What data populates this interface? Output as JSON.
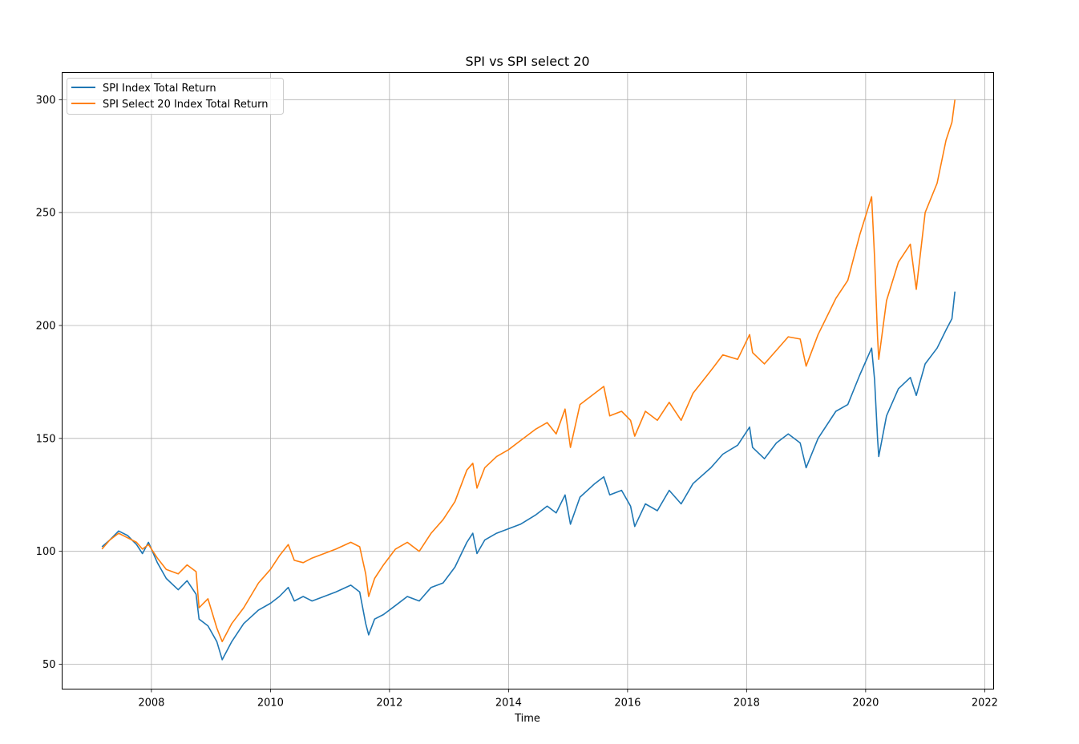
{
  "chart_data": {
    "type": "line",
    "title": "SPI vs SPI select 20",
    "xlabel": "Time",
    "ylabel": "",
    "xlim": [
      2006.5,
      2022.15
    ],
    "ylim": [
      39,
      312
    ],
    "x_ticks": [
      2008,
      2010,
      2012,
      2014,
      2016,
      2018,
      2020,
      2022
    ],
    "x_tick_labels": [
      "2008",
      "2010",
      "2012",
      "2014",
      "2016",
      "2018",
      "2020",
      "2022"
    ],
    "y_ticks": [
      50,
      100,
      150,
      200,
      250,
      300
    ],
    "y_tick_labels": [
      "50",
      "100",
      "150",
      "200",
      "250",
      "300"
    ],
    "grid": true,
    "legend_position": "upper-left",
    "series": [
      {
        "name": "SPI Index Total Return",
        "color": "#1f77b4",
        "points": [
          [
            2007.17,
            102
          ],
          [
            2007.3,
            105
          ],
          [
            2007.45,
            109
          ],
          [
            2007.6,
            107
          ],
          [
            2007.75,
            103
          ],
          [
            2007.85,
            99
          ],
          [
            2007.95,
            104
          ],
          [
            2008.1,
            95
          ],
          [
            2008.25,
            88
          ],
          [
            2008.45,
            83
          ],
          [
            2008.6,
            87
          ],
          [
            2008.75,
            81
          ],
          [
            2008.8,
            70
          ],
          [
            2008.95,
            67
          ],
          [
            2009.1,
            60
          ],
          [
            2009.19,
            52
          ],
          [
            2009.35,
            60
          ],
          [
            2009.55,
            68
          ],
          [
            2009.8,
            74
          ],
          [
            2010.0,
            77
          ],
          [
            2010.15,
            80
          ],
          [
            2010.3,
            84
          ],
          [
            2010.4,
            78
          ],
          [
            2010.55,
            80
          ],
          [
            2010.7,
            78
          ],
          [
            2010.9,
            80
          ],
          [
            2011.1,
            82
          ],
          [
            2011.35,
            85
          ],
          [
            2011.5,
            82
          ],
          [
            2011.6,
            68
          ],
          [
            2011.65,
            63
          ],
          [
            2011.75,
            70
          ],
          [
            2011.9,
            72
          ],
          [
            2012.1,
            76
          ],
          [
            2012.3,
            80
          ],
          [
            2012.5,
            78
          ],
          [
            2012.7,
            84
          ],
          [
            2012.9,
            86
          ],
          [
            2013.1,
            93
          ],
          [
            2013.3,
            104
          ],
          [
            2013.4,
            108
          ],
          [
            2013.47,
            99
          ],
          [
            2013.6,
            105
          ],
          [
            2013.8,
            108
          ],
          [
            2014.0,
            110
          ],
          [
            2014.2,
            112
          ],
          [
            2014.45,
            116
          ],
          [
            2014.65,
            120
          ],
          [
            2014.8,
            117
          ],
          [
            2014.95,
            125
          ],
          [
            2015.04,
            112
          ],
          [
            2015.2,
            124
          ],
          [
            2015.45,
            130
          ],
          [
            2015.6,
            133
          ],
          [
            2015.7,
            125
          ],
          [
            2015.9,
            127
          ],
          [
            2016.05,
            120
          ],
          [
            2016.12,
            111
          ],
          [
            2016.3,
            121
          ],
          [
            2016.5,
            118
          ],
          [
            2016.7,
            127
          ],
          [
            2016.9,
            121
          ],
          [
            2017.1,
            130
          ],
          [
            2017.4,
            137
          ],
          [
            2017.6,
            143
          ],
          [
            2017.85,
            147
          ],
          [
            2018.05,
            155
          ],
          [
            2018.1,
            146
          ],
          [
            2018.3,
            141
          ],
          [
            2018.5,
            148
          ],
          [
            2018.7,
            152
          ],
          [
            2018.9,
            148
          ],
          [
            2019.0,
            137
          ],
          [
            2019.2,
            150
          ],
          [
            2019.5,
            162
          ],
          [
            2019.7,
            165
          ],
          [
            2019.9,
            178
          ],
          [
            2020.1,
            190
          ],
          [
            2020.15,
            176
          ],
          [
            2020.2,
            150
          ],
          [
            2020.22,
            142
          ],
          [
            2020.35,
            160
          ],
          [
            2020.55,
            172
          ],
          [
            2020.75,
            177
          ],
          [
            2020.85,
            169
          ],
          [
            2021.0,
            183
          ],
          [
            2021.2,
            190
          ],
          [
            2021.35,
            198
          ],
          [
            2021.45,
            203
          ],
          [
            2021.5,
            215
          ]
        ]
      },
      {
        "name": "SPI Select 20 Index Total Return",
        "color": "#ff7f0e",
        "points": [
          [
            2007.17,
            101
          ],
          [
            2007.3,
            105
          ],
          [
            2007.45,
            108
          ],
          [
            2007.6,
            106
          ],
          [
            2007.75,
            104
          ],
          [
            2007.85,
            101
          ],
          [
            2007.95,
            103
          ],
          [
            2008.1,
            97
          ],
          [
            2008.25,
            92
          ],
          [
            2008.45,
            90
          ],
          [
            2008.6,
            94
          ],
          [
            2008.75,
            91
          ],
          [
            2008.8,
            75
          ],
          [
            2008.95,
            79
          ],
          [
            2009.1,
            66
          ],
          [
            2009.19,
            60
          ],
          [
            2009.35,
            68
          ],
          [
            2009.55,
            75
          ],
          [
            2009.8,
            86
          ],
          [
            2010.0,
            92
          ],
          [
            2010.15,
            98
          ],
          [
            2010.3,
            103
          ],
          [
            2010.4,
            96
          ],
          [
            2010.55,
            95
          ],
          [
            2010.7,
            97
          ],
          [
            2010.9,
            99
          ],
          [
            2011.1,
            101
          ],
          [
            2011.35,
            104
          ],
          [
            2011.5,
            102
          ],
          [
            2011.6,
            90
          ],
          [
            2011.65,
            80
          ],
          [
            2011.75,
            88
          ],
          [
            2011.9,
            94
          ],
          [
            2012.1,
            101
          ],
          [
            2012.3,
            104
          ],
          [
            2012.5,
            100
          ],
          [
            2012.7,
            108
          ],
          [
            2012.9,
            114
          ],
          [
            2013.1,
            122
          ],
          [
            2013.3,
            136
          ],
          [
            2013.4,
            139
          ],
          [
            2013.47,
            128
          ],
          [
            2013.6,
            137
          ],
          [
            2013.8,
            142
          ],
          [
            2014.0,
            145
          ],
          [
            2014.2,
            149
          ],
          [
            2014.45,
            154
          ],
          [
            2014.65,
            157
          ],
          [
            2014.8,
            152
          ],
          [
            2014.95,
            163
          ],
          [
            2015.04,
            146
          ],
          [
            2015.2,
            165
          ],
          [
            2015.45,
            170
          ],
          [
            2015.6,
            173
          ],
          [
            2015.7,
            160
          ],
          [
            2015.9,
            162
          ],
          [
            2016.05,
            158
          ],
          [
            2016.12,
            151
          ],
          [
            2016.3,
            162
          ],
          [
            2016.5,
            158
          ],
          [
            2016.7,
            166
          ],
          [
            2016.9,
            158
          ],
          [
            2017.1,
            170
          ],
          [
            2017.4,
            180
          ],
          [
            2017.6,
            187
          ],
          [
            2017.85,
            185
          ],
          [
            2018.05,
            196
          ],
          [
            2018.1,
            188
          ],
          [
            2018.3,
            183
          ],
          [
            2018.5,
            189
          ],
          [
            2018.7,
            195
          ],
          [
            2018.9,
            194
          ],
          [
            2019.0,
            182
          ],
          [
            2019.2,
            196
          ],
          [
            2019.5,
            212
          ],
          [
            2019.7,
            220
          ],
          [
            2019.9,
            240
          ],
          [
            2020.1,
            257
          ],
          [
            2020.15,
            230
          ],
          [
            2020.2,
            195
          ],
          [
            2020.22,
            185
          ],
          [
            2020.35,
            211
          ],
          [
            2020.55,
            228
          ],
          [
            2020.75,
            236
          ],
          [
            2020.85,
            216
          ],
          [
            2021.0,
            250
          ],
          [
            2021.2,
            263
          ],
          [
            2021.35,
            282
          ],
          [
            2021.45,
            290
          ],
          [
            2021.5,
            300
          ]
        ]
      }
    ]
  }
}
